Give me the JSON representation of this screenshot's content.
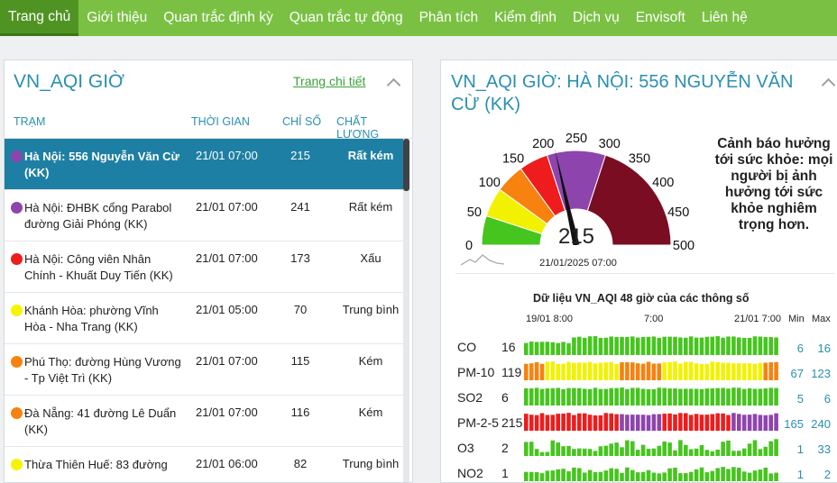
{
  "nav": [
    {
      "label": "Trang chủ",
      "active": true
    },
    {
      "label": "Giới thiệu"
    },
    {
      "label": "Quan trắc định kỳ"
    },
    {
      "label": "Quan trắc tự động"
    },
    {
      "label": "Phân tích"
    },
    {
      "label": "Kiểm định"
    },
    {
      "label": "Dịch vụ"
    },
    {
      "label": "Envisoft"
    },
    {
      "label": "Liên hệ"
    }
  ],
  "left_panel": {
    "title": "VN_AQI GIỜ",
    "detail_link": "Trang chi tiết",
    "headers": {
      "station": "TRẠM",
      "time": "THỜI GIAN",
      "index": "CHỈ SỐ",
      "quality": "CHẤT LƯỢNG"
    },
    "rows": [
      {
        "station": "Hà Nội: 556 Nguyễn Văn Cừ (KK)",
        "time": "21/01  07:00",
        "index": "215",
        "quality": "Rất kém",
        "color": "#8e44ad",
        "selected": true
      },
      {
        "station": "Hà Nội: ĐHBK cổng Parabol đường Giải Phóng (KK)",
        "time": "21/01  07:00",
        "index": "241",
        "quality": "Rất kém",
        "color": "#8e44ad"
      },
      {
        "station": "Hà Nội: Công viên Nhân Chính - Khuất Duy Tiến (KK)",
        "time": "21/01  07:00",
        "index": "173",
        "quality": "Xấu",
        "color": "#ee1c1c"
      },
      {
        "station": "Khánh Hòa: phường Vĩnh Hòa - Nha Trang (KK)",
        "time": "21/01  05:00",
        "index": "70",
        "quality": "Trung bình",
        "color": "#f5f500"
      },
      {
        "station": "Phú Thọ: đường Hùng Vương - Tp Việt Trì (KK)",
        "time": "21/01  07:00",
        "index": "115",
        "quality": "Kém",
        "color": "#f7820f"
      },
      {
        "station": "Đà Nẵng: 41 đường Lê Duẩn (KK)",
        "time": "21/01  07:00",
        "index": "116",
        "quality": "Kém",
        "color": "#f7820f"
      },
      {
        "station": "Thừa Thiên Huế: 83 đường",
        "time": "21/01  06:00",
        "index": "82",
        "quality": "Trung bình",
        "color": "#f5f500"
      }
    ]
  },
  "right_panel": {
    "title": "VN_AQI GIỜ: HÀ NỘI: 556 NGUYỄN VĂN CỪ (KK)",
    "gauge": {
      "value": 215,
      "value_text": "215",
      "max": 500,
      "timestamp": "21/01/2025 07:00",
      "ticks": [
        "0",
        "50",
        "100",
        "150",
        "200",
        "250",
        "300",
        "350",
        "400",
        "450",
        "500"
      ],
      "bands": [
        {
          "from": 0,
          "to": 50,
          "color": "#46c51e"
        },
        {
          "from": 50,
          "to": 100,
          "color": "#f2f200"
        },
        {
          "from": 100,
          "to": 150,
          "color": "#f7820f"
        },
        {
          "from": 150,
          "to": 200,
          "color": "#ee1c1c"
        },
        {
          "from": 200,
          "to": 300,
          "color": "#8e44ad"
        },
        {
          "from": 300,
          "to": 500,
          "color": "#7b0d22"
        }
      ]
    },
    "warning": "Cảnh báo hưởng tới sức khỏe: mọi người bị ảnh hưởng tới sức khỏe nghiêm trọng hơn.",
    "history_title": "Dữ liệu VN_AQI 48 giờ của các thông số",
    "axis": {
      "start": "19/01 8:00",
      "mid": "7:00",
      "end": "21/01 7:00",
      "min_label": "Min",
      "max_label": "Max"
    },
    "params": [
      {
        "name": "CO",
        "value": "16",
        "min": "6",
        "max": "16"
      },
      {
        "name": "PM-10",
        "value": "119",
        "min": "67",
        "max": "123"
      },
      {
        "name": "SO2",
        "value": "6",
        "min": "5",
        "max": "6"
      },
      {
        "name": "PM-2-5",
        "value": "215",
        "min": "165",
        "max": "240"
      },
      {
        "name": "O3",
        "value": "2",
        "min": "1",
        "max": "33"
      },
      {
        "name": "NO2",
        "value": "1",
        "min": "1",
        "max": "2"
      }
    ],
    "colors": {
      "good": "#46c51e",
      "moderate": "#f2f200",
      "poor": "#f7820f",
      "bad": "#ee1c1c",
      "very_bad": "#8e44ad"
    }
  }
}
